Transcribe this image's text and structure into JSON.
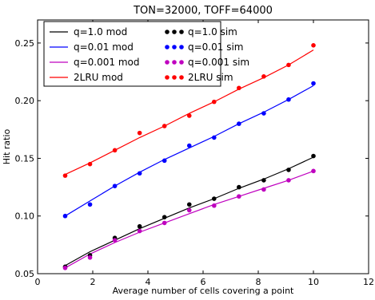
{
  "chart_data": {
    "type": "line",
    "title": "TON=32000, TOFF=64000",
    "xlabel": "Average number of cells covering a point",
    "ylabel": "Hit ratio",
    "xlim": [
      0,
      12
    ],
    "ylim": [
      0.05,
      0.27
    ],
    "xticks": [
      0,
      2,
      4,
      6,
      8,
      10,
      12
    ],
    "yticks": [
      0.05,
      0.1,
      0.15,
      0.2,
      0.25
    ],
    "xtick_labels": [
      "0",
      "2",
      "4",
      "6",
      "8",
      "10",
      "12"
    ],
    "ytick_labels": [
      "0.05",
      "0.10",
      "0.15",
      "0.20",
      "0.25"
    ],
    "grid": false,
    "legend_position": "top-left",
    "legend": [
      {
        "label": "q=1.0 mod",
        "kind": "line",
        "color": "#000000"
      },
      {
        "label": "q=1.0  sim",
        "kind": "points",
        "color": "#000000"
      },
      {
        "label": "q=0.01 mod",
        "kind": "line",
        "color": "#0000ff"
      },
      {
        "label": "q=0.01 sim",
        "kind": "points",
        "color": "#0000ff"
      },
      {
        "label": "q=0.001 mod",
        "kind": "line",
        "color": "#bf00bf"
      },
      {
        "label": "q=0.001 sim",
        "kind": "points",
        "color": "#bf00bf"
      },
      {
        "label": "2LRU mod",
        "kind": "line",
        "color": "#ff0000"
      },
      {
        "label": "2LRU sim",
        "kind": "points",
        "color": "#ff0000"
      }
    ],
    "series": [
      {
        "name": "q=1.0 mod",
        "kind": "line",
        "color": "#000000",
        "x": [
          1.0,
          1.9,
          2.8,
          3.7,
          4.6,
          5.5,
          6.4,
          7.3,
          8.2,
          9.1,
          10.0
        ],
        "y": [
          0.057,
          0.069,
          0.079,
          0.089,
          0.098,
          0.107,
          0.115,
          0.124,
          0.132,
          0.141,
          0.151
        ]
      },
      {
        "name": "q=0.01 mod",
        "kind": "line",
        "color": "#0000ff",
        "x": [
          1.0,
          1.9,
          2.8,
          3.7,
          4.6,
          5.5,
          6.4,
          7.3,
          8.2,
          9.1,
          10.0
        ],
        "y": [
          0.1,
          0.113,
          0.126,
          0.138,
          0.149,
          0.159,
          0.169,
          0.18,
          0.19,
          0.201,
          0.213
        ]
      },
      {
        "name": "q=0.001 mod",
        "kind": "line",
        "color": "#bf00bf",
        "x": [
          1.0,
          1.9,
          2.8,
          3.7,
          4.6,
          5.5,
          6.4,
          7.3,
          8.2,
          9.1,
          10.0
        ],
        "y": [
          0.055,
          0.067,
          0.077,
          0.086,
          0.094,
          0.102,
          0.11,
          0.117,
          0.124,
          0.131,
          0.139
        ]
      },
      {
        "name": "2LRU mod",
        "kind": "line",
        "color": "#ff0000",
        "x": [
          1.0,
          1.9,
          2.8,
          3.7,
          4.6,
          5.5,
          6.4,
          7.3,
          8.2,
          9.1,
          10.0
        ],
        "y": [
          0.136,
          0.146,
          0.157,
          0.168,
          0.178,
          0.189,
          0.199,
          0.21,
          0.22,
          0.231,
          0.244
        ]
      },
      {
        "name": "q=1.0  sim",
        "kind": "points",
        "color": "#000000",
        "x": [
          1.0,
          1.9,
          2.8,
          3.7,
          4.6,
          5.5,
          6.4,
          7.3,
          8.2,
          9.1,
          10.0
        ],
        "y": [
          0.056,
          0.066,
          0.081,
          0.091,
          0.099,
          0.11,
          0.115,
          0.125,
          0.131,
          0.14,
          0.152
        ]
      },
      {
        "name": "q=0.01 sim",
        "kind": "points",
        "color": "#0000ff",
        "x": [
          1.0,
          1.9,
          2.8,
          3.7,
          4.6,
          5.5,
          6.4,
          7.3,
          8.2,
          9.1,
          10.0
        ],
        "y": [
          0.1,
          0.11,
          0.126,
          0.137,
          0.148,
          0.161,
          0.168,
          0.18,
          0.189,
          0.201,
          0.215
        ]
      },
      {
        "name": "q=0.001 sim",
        "kind": "points",
        "color": "#bf00bf",
        "x": [
          1.0,
          1.9,
          2.8,
          3.7,
          4.6,
          5.5,
          6.4,
          7.3,
          8.2,
          9.1,
          10.0
        ],
        "y": [
          0.055,
          0.064,
          0.079,
          0.087,
          0.094,
          0.105,
          0.109,
          0.117,
          0.123,
          0.131,
          0.139
        ]
      },
      {
        "name": "2LRU sim",
        "kind": "points",
        "color": "#ff0000",
        "x": [
          1.0,
          1.9,
          2.8,
          3.7,
          4.6,
          5.5,
          6.4,
          7.3,
          8.2,
          9.1,
          10.0
        ],
        "y": [
          0.135,
          0.145,
          0.157,
          0.172,
          0.178,
          0.187,
          0.199,
          0.211,
          0.221,
          0.231,
          0.248
        ]
      }
    ]
  }
}
